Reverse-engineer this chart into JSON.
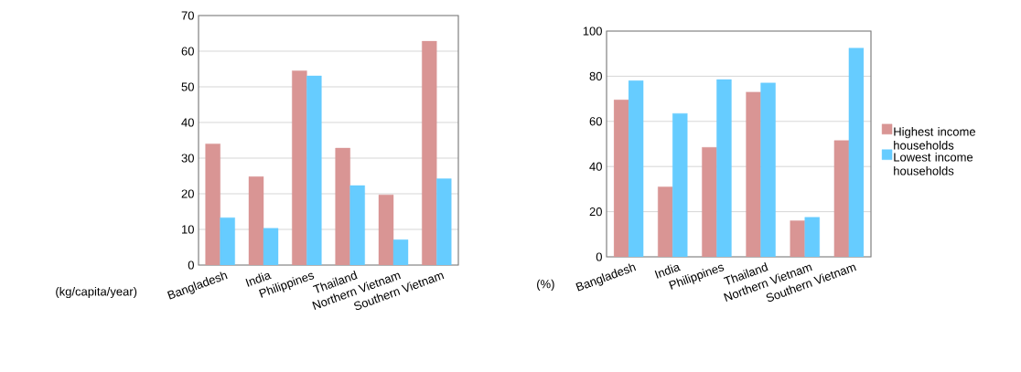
{
  "chart_data": [
    {
      "type": "bar",
      "ylabel": "(kg/capita/year)",
      "categories": [
        "Bangladesh",
        "India",
        "Philippines",
        "Thailand",
        "Northern Vietnam",
        "Southern Vietnam"
      ],
      "series": [
        {
          "color": "#d99594",
          "values": [
            34,
            24.8,
            54.5,
            32.8,
            19.7,
            62.8
          ]
        },
        {
          "color": "#66ccff",
          "values": [
            13.3,
            10.3,
            53.1,
            22.3,
            7.1,
            24.2
          ]
        }
      ],
      "ylim": [
        0,
        70
      ],
      "yticks": [
        0,
        10,
        20,
        30,
        40,
        50,
        60,
        70
      ],
      "grid": "y"
    },
    {
      "type": "bar",
      "ylabel": "(%)",
      "categories": [
        "Bangladesh",
        "India",
        "Philippines",
        "Thailand",
        "Northern Vietnam",
        "Southern Vietnam"
      ],
      "series": [
        {
          "name": "Highest income households",
          "color": "#d99594",
          "values": [
            69.5,
            31,
            48.5,
            73,
            16,
            51.5
          ]
        },
        {
          "name": "Lowest income households",
          "color": "#66ccff",
          "values": [
            78,
            63.5,
            78.5,
            77,
            17.5,
            92.5
          ]
        }
      ],
      "ylim": [
        0,
        100
      ],
      "yticks": [
        0,
        20,
        40,
        60,
        80,
        100
      ],
      "grid": "y",
      "legend": "right"
    }
  ]
}
